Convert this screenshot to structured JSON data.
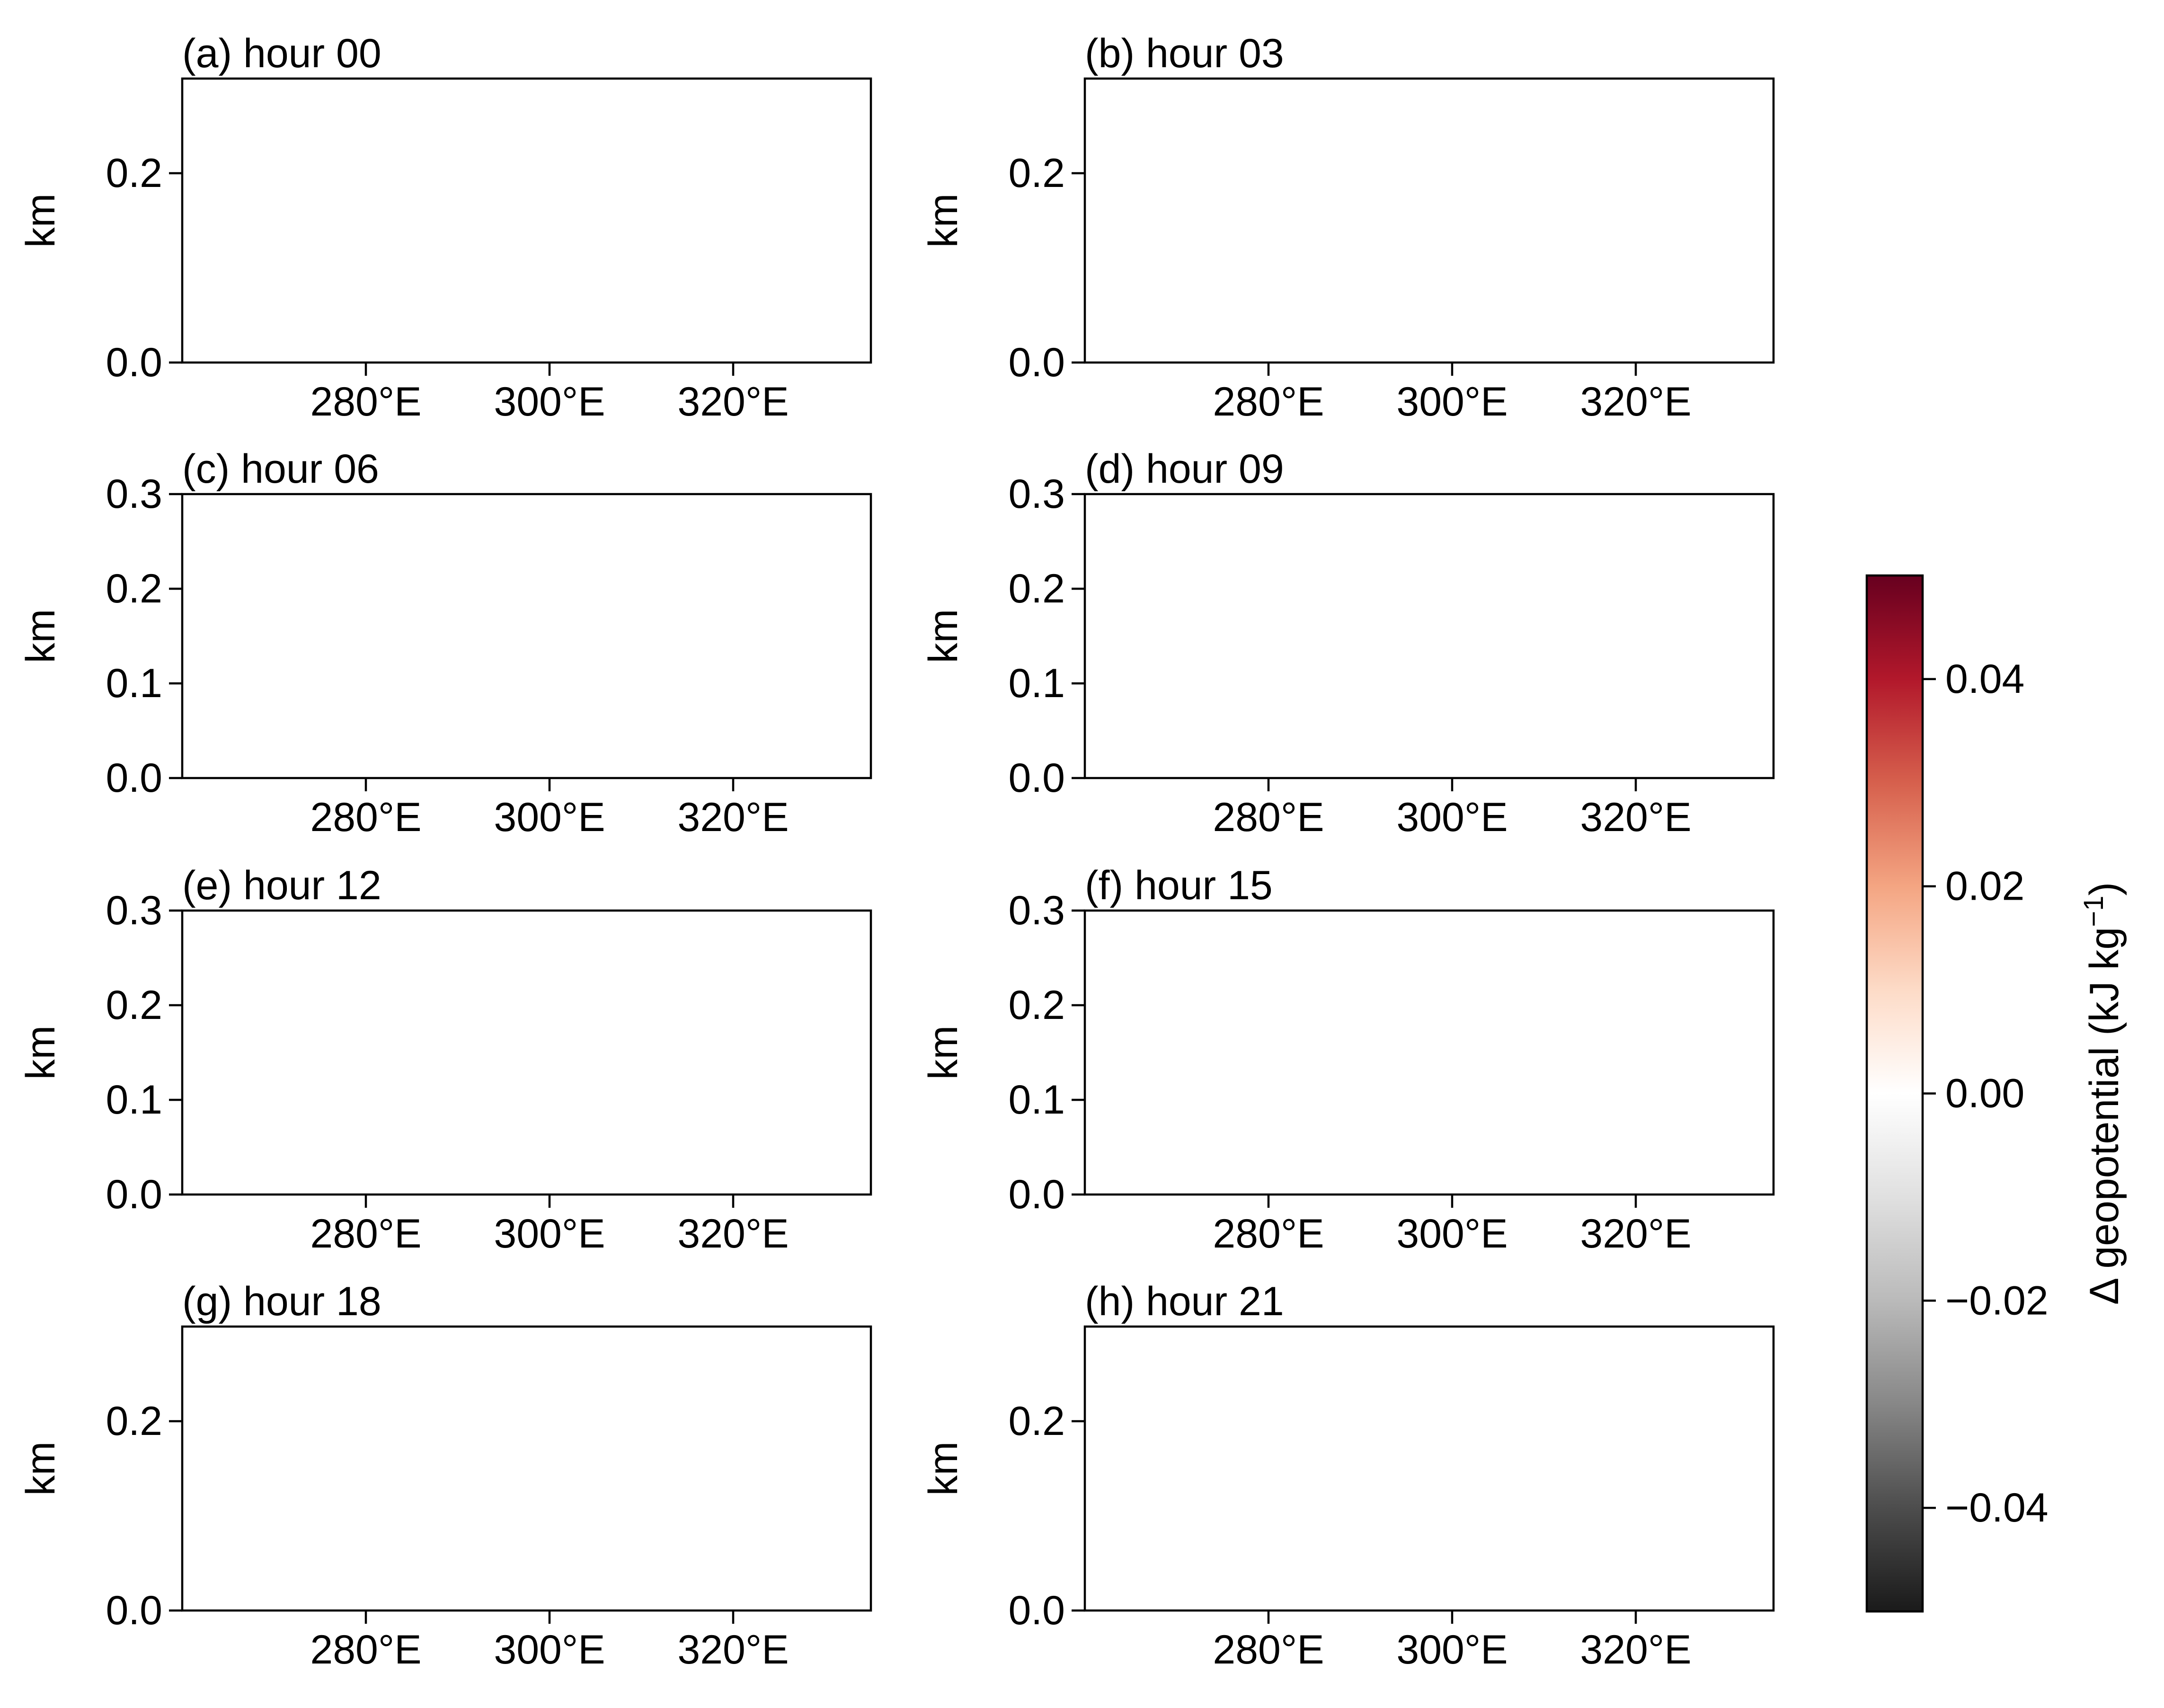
{
  "chart_data": {
    "type": "heatmap",
    "panels": [
      {
        "title": "(a) hour 00",
        "ylabel": "km",
        "yticks": [
          0.0,
          0.2
        ],
        "xticks": [
          "280°E",
          "300°E",
          "320°E"
        ]
      },
      {
        "title": "(b) hour 03",
        "ylabel": "km",
        "yticks": [
          0.0,
          0.2
        ],
        "xticks": [
          "280°E",
          "300°E",
          "320°E"
        ]
      },
      {
        "title": "(c) hour 06",
        "ylabel": "km",
        "yticks": [
          0.0,
          0.1,
          0.2,
          0.3
        ],
        "xticks": [
          "280°E",
          "300°E",
          "320°E"
        ]
      },
      {
        "title": "(d) hour 09",
        "ylabel": "km",
        "yticks": [
          0.0,
          0.1,
          0.2,
          0.3
        ],
        "xticks": [
          "280°E",
          "300°E",
          "320°E"
        ]
      },
      {
        "title": "(e) hour 12",
        "ylabel": "km",
        "yticks": [
          0.0,
          0.1,
          0.2,
          0.3
        ],
        "xticks": [
          "280°E",
          "300°E",
          "320°E"
        ]
      },
      {
        "title": "(f) hour 15",
        "ylabel": "km",
        "yticks": [
          0.0,
          0.1,
          0.2,
          0.3
        ],
        "xticks": [
          "280°E",
          "300°E",
          "320°E"
        ]
      },
      {
        "title": "(g) hour 18",
        "ylabel": "km",
        "yticks": [
          0.0,
          0.2
        ],
        "xticks": [
          "280°E",
          "300°E",
          "320°E"
        ]
      },
      {
        "title": "(h) hour 21",
        "ylabel": "km",
        "yticks": [
          0.0,
          0.2
        ],
        "xticks": [
          "280°E",
          "300°E",
          "320°E"
        ]
      }
    ],
    "x_tick_values": [
      280,
      300,
      320
    ],
    "xlim": [
      260,
      335
    ],
    "ylim": [
      0.0,
      0.3
    ],
    "colorbar": {
      "label": "Δ geopotential (kJ kg",
      "label_superscript": "−1",
      "label_close": ")",
      "range": [
        -0.05,
        0.05
      ],
      "ticks": [
        0.04,
        0.02,
        0.0,
        -0.02,
        -0.04
      ],
      "tick_labels": [
        "0.04",
        "0.02",
        "0.00",
        "−0.02",
        "−0.04"
      ],
      "colormap": "RdGy_r",
      "colors": [
        "#1a1a1a",
        "#4d4d4d",
        "#878787",
        "#bababa",
        "#e0e0e0",
        "#ffffff",
        "#fddbc7",
        "#f4a582",
        "#d6604d",
        "#b2182b",
        "#67001f"
      ]
    }
  }
}
